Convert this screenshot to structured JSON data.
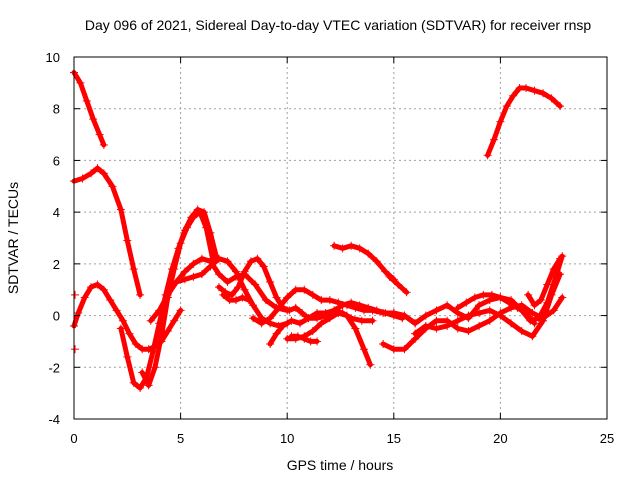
{
  "chart_data": {
    "type": "scatter",
    "title": "Day 096 of 2021, Sidereal Day-to-day VTEC variation (SDTVAR) for receiver rnsp",
    "xlabel": "GPS time / hours",
    "ylabel": "SDTVAR / TECUs",
    "xlim": [
      0,
      25
    ],
    "ylim": [
      -4,
      10
    ],
    "xticks": [
      "0",
      "5",
      "10",
      "15",
      "20",
      "25"
    ],
    "yticks": [
      "-4",
      "-2",
      "0",
      "2",
      "4",
      "6",
      "8",
      "10"
    ],
    "grid": true,
    "marker": "plus",
    "color": "#ff0000",
    "series": [
      {
        "name": "track-1",
        "x": [
          0.0,
          0.3,
          0.6,
          0.9,
          1.2,
          1.4
        ],
        "y": [
          9.4,
          9.0,
          8.3,
          7.6,
          7.0,
          6.6
        ]
      },
      {
        "name": "track-2",
        "x": [
          0.0,
          0.4,
          0.8,
          1.1,
          1.4,
          1.8,
          2.2,
          2.5,
          2.8,
          3.1
        ],
        "y": [
          5.2,
          5.3,
          5.5,
          5.7,
          5.5,
          5.0,
          4.1,
          2.9,
          1.8,
          0.8
        ]
      },
      {
        "name": "track-3",
        "x": [
          0.0,
          0.2,
          0.5,
          0.8,
          1.1,
          1.4,
          1.7,
          2.0,
          2.3,
          2.6,
          2.9,
          3.2,
          3.5,
          3.8,
          4.1,
          4.4,
          4.7,
          5.0
        ],
        "y": [
          -0.4,
          0.1,
          0.7,
          1.1,
          1.2,
          1.0,
          0.6,
          0.2,
          -0.2,
          -0.7,
          -1.1,
          -1.3,
          -1.3,
          -1.2,
          -1.0,
          -0.6,
          -0.2,
          0.2
        ]
      },
      {
        "name": "track-4",
        "x": [
          2.2,
          2.5,
          2.8,
          3.1,
          3.4,
          3.7,
          4.0,
          4.3,
          4.6,
          4.9,
          5.2,
          5.5,
          5.8,
          6.1,
          6.4,
          6.7
        ],
        "y": [
          -0.5,
          -1.6,
          -2.6,
          -2.8,
          -2.4,
          -1.4,
          -0.3,
          0.8,
          1.8,
          2.6,
          3.3,
          3.8,
          4.1,
          4.0,
          3.2,
          2.2
        ]
      },
      {
        "name": "track-5",
        "x": [
          3.2,
          3.5,
          3.8,
          4.1,
          4.4,
          4.7,
          5.0,
          5.3,
          5.6,
          5.9,
          6.2,
          6.5
        ],
        "y": [
          -2.2,
          -2.7,
          -2.0,
          -0.8,
          0.7,
          1.8,
          2.8,
          3.4,
          3.8,
          4.0,
          3.4,
          2.2
        ]
      },
      {
        "name": "track-6",
        "x": [
          3.6,
          4.0,
          4.4,
          4.8,
          5.2,
          5.6,
          6.0,
          6.4,
          6.8,
          7.2,
          7.6,
          8.0,
          8.5,
          9.0,
          9.5,
          10.0
        ],
        "y": [
          -0.2,
          0.2,
          0.8,
          1.3,
          1.7,
          2.0,
          2.2,
          2.1,
          1.6,
          1.3,
          1.5,
          1.6,
          1.2,
          0.6,
          0.3,
          0.2
        ]
      },
      {
        "name": "track-7",
        "x": [
          4.8,
          5.2,
          5.6,
          6.0,
          6.4,
          6.8,
          7.2,
          7.6,
          8.0,
          8.4,
          8.8,
          9.2,
          9.6,
          10.0
        ],
        "y": [
          1.3,
          1.4,
          1.5,
          1.6,
          1.9,
          2.2,
          2.1,
          1.7,
          1.0,
          0.4,
          -0.1,
          -0.3,
          -0.4,
          -0.3
        ]
      },
      {
        "name": "track-8",
        "x": [
          6.8,
          7.1,
          7.4,
          7.7,
          8.0,
          8.3,
          8.6,
          8.9,
          9.2,
          9.5,
          9.8,
          10.1,
          10.4,
          10.7,
          11.0,
          11.4,
          11.8,
          12.2,
          12.6,
          13.0,
          13.5,
          14.0
        ],
        "y": [
          1.1,
          0.9,
          0.8,
          1.1,
          1.7,
          2.1,
          2.2,
          1.9,
          1.3,
          0.7,
          0.3,
          0.2,
          0.3,
          0.1,
          -0.1,
          -0.1,
          0.0,
          0.2,
          0.1,
          -0.1,
          -0.2,
          -0.2
        ]
      },
      {
        "name": "track-9",
        "x": [
          7.0,
          7.3,
          7.6,
          7.9,
          8.2
        ],
        "y": [
          0.8,
          0.6,
          0.6,
          0.7,
          0.6
        ]
      },
      {
        "name": "track-10",
        "x": [
          8.4,
          8.8,
          9.2,
          9.6,
          10.0,
          10.4,
          10.8,
          11.2,
          11.6,
          12.0,
          12.4,
          12.8,
          13.2,
          13.6,
          14.0,
          14.5,
          15.0,
          15.5,
          16.0
        ],
        "y": [
          -0.1,
          -0.3,
          -0.1,
          0.3,
          0.7,
          1.0,
          1.0,
          0.8,
          0.6,
          0.6,
          0.5,
          0.4,
          0.3,
          0.2,
          0.2,
          0.1,
          0.1,
          0.0,
          -0.3
        ]
      },
      {
        "name": "track-11",
        "x": [
          9.2,
          9.5,
          9.8,
          10.2,
          10.6,
          11.0,
          11.4,
          11.8,
          12.2,
          12.6,
          13.0,
          13.4,
          13.8,
          14.2,
          14.6,
          15.0,
          15.4
        ],
        "y": [
          -1.1,
          -0.7,
          -0.4,
          -0.2,
          -0.3,
          -0.1,
          0.1,
          0.1,
          0.2,
          0.4,
          0.5,
          0.4,
          0.3,
          0.2,
          0.1,
          0.0,
          -0.1
        ]
      },
      {
        "name": "track-12",
        "x": [
          10.0,
          10.4,
          10.8,
          11.2,
          11.6,
          12.0,
          12.4,
          12.8,
          13.2,
          13.6,
          13.9
        ],
        "y": [
          -0.9,
          -0.9,
          -0.8,
          -0.6,
          -0.3,
          -0.1,
          0.1,
          0.0,
          -0.5,
          -1.3,
          -1.9
        ]
      },
      {
        "name": "track-13",
        "x": [
          10.2,
          10.5,
          10.8,
          11.1,
          11.4
        ],
        "y": [
          -0.8,
          -0.8,
          -0.9,
          -1.0,
          -1.0
        ]
      },
      {
        "name": "track-14",
        "x": [
          12.2,
          12.6,
          13.0,
          13.4,
          13.8,
          14.2,
          14.6,
          15.0
        ],
        "y": [
          2.7,
          2.6,
          2.7,
          2.6,
          2.4,
          2.1,
          1.7,
          1.4
        ]
      },
      {
        "name": "track-15",
        "x": [
          14.8,
          15.2,
          15.6
        ],
        "y": [
          1.5,
          1.2,
          0.9
        ]
      },
      {
        "name": "track-16",
        "x": [
          14.5,
          15.0,
          15.5,
          16.0,
          16.5,
          17.0,
          17.5,
          18.0,
          18.5,
          19.0,
          19.5,
          20.0,
          20.5,
          21.0,
          21.5,
          22.0,
          22.5,
          22.9
        ],
        "y": [
          -1.1,
          -1.3,
          -1.3,
          -0.9,
          -0.5,
          -0.2,
          -0.2,
          -0.5,
          -0.6,
          -0.4,
          -0.2,
          0.1,
          0.3,
          0.4,
          0.1,
          -0.1,
          0.2,
          0.7
        ]
      },
      {
        "name": "track-17",
        "x": [
          15.0,
          15.5,
          16.0,
          16.5,
          17.0,
          17.5,
          18.0,
          18.5,
          19.0,
          19.5,
          20.0,
          20.5,
          21.0,
          21.4,
          21.8,
          22.2,
          22.6,
          22.9
        ],
        "y": [
          0.1,
          0.0,
          -0.3,
          0.0,
          0.2,
          0.4,
          0.1,
          -0.1,
          0.4,
          0.6,
          0.7,
          0.6,
          0.2,
          -0.2,
          -0.1,
          0.5,
          1.5,
          2.3
        ]
      },
      {
        "name": "track-18",
        "x": [
          16.0,
          16.5,
          17.0,
          17.5,
          18.0,
          18.5,
          19.0,
          19.5,
          20.0,
          20.5,
          21.0,
          21.5,
          22.0,
          22.4,
          22.8
        ],
        "y": [
          -0.7,
          -0.4,
          -0.5,
          -0.4,
          -0.2,
          0.0,
          0.1,
          0.2,
          0.0,
          -0.3,
          -0.6,
          -0.8,
          -0.2,
          0.8,
          1.6
        ]
      },
      {
        "name": "track-19",
        "x": [
          18.0,
          18.4,
          18.8,
          19.2,
          19.6,
          20.0,
          20.4,
          20.8,
          21.2,
          21.6
        ],
        "y": [
          0.3,
          0.5,
          0.7,
          0.8,
          0.8,
          0.7,
          0.5,
          0.3,
          0.1,
          -0.3
        ]
      },
      {
        "name": "track-20",
        "x": [
          21.3,
          21.6,
          21.9,
          22.2,
          22.5,
          22.8
        ],
        "y": [
          0.8,
          0.4,
          0.6,
          1.2,
          1.8,
          2.2
        ]
      },
      {
        "name": "track-21",
        "x": [
          19.4,
          19.7,
          20.0,
          20.3,
          20.6,
          20.9,
          21.2,
          21.6,
          22.0,
          22.4,
          22.8
        ],
        "y": [
          6.2,
          6.8,
          7.5,
          8.1,
          8.5,
          8.8,
          8.8,
          8.7,
          8.6,
          8.4,
          8.1
        ]
      },
      {
        "name": "isolated-1",
        "x": [
          0.05
        ],
        "y": [
          0.8
        ]
      },
      {
        "name": "isolated-2",
        "x": [
          0.05
        ],
        "y": [
          -1.3
        ]
      }
    ]
  }
}
